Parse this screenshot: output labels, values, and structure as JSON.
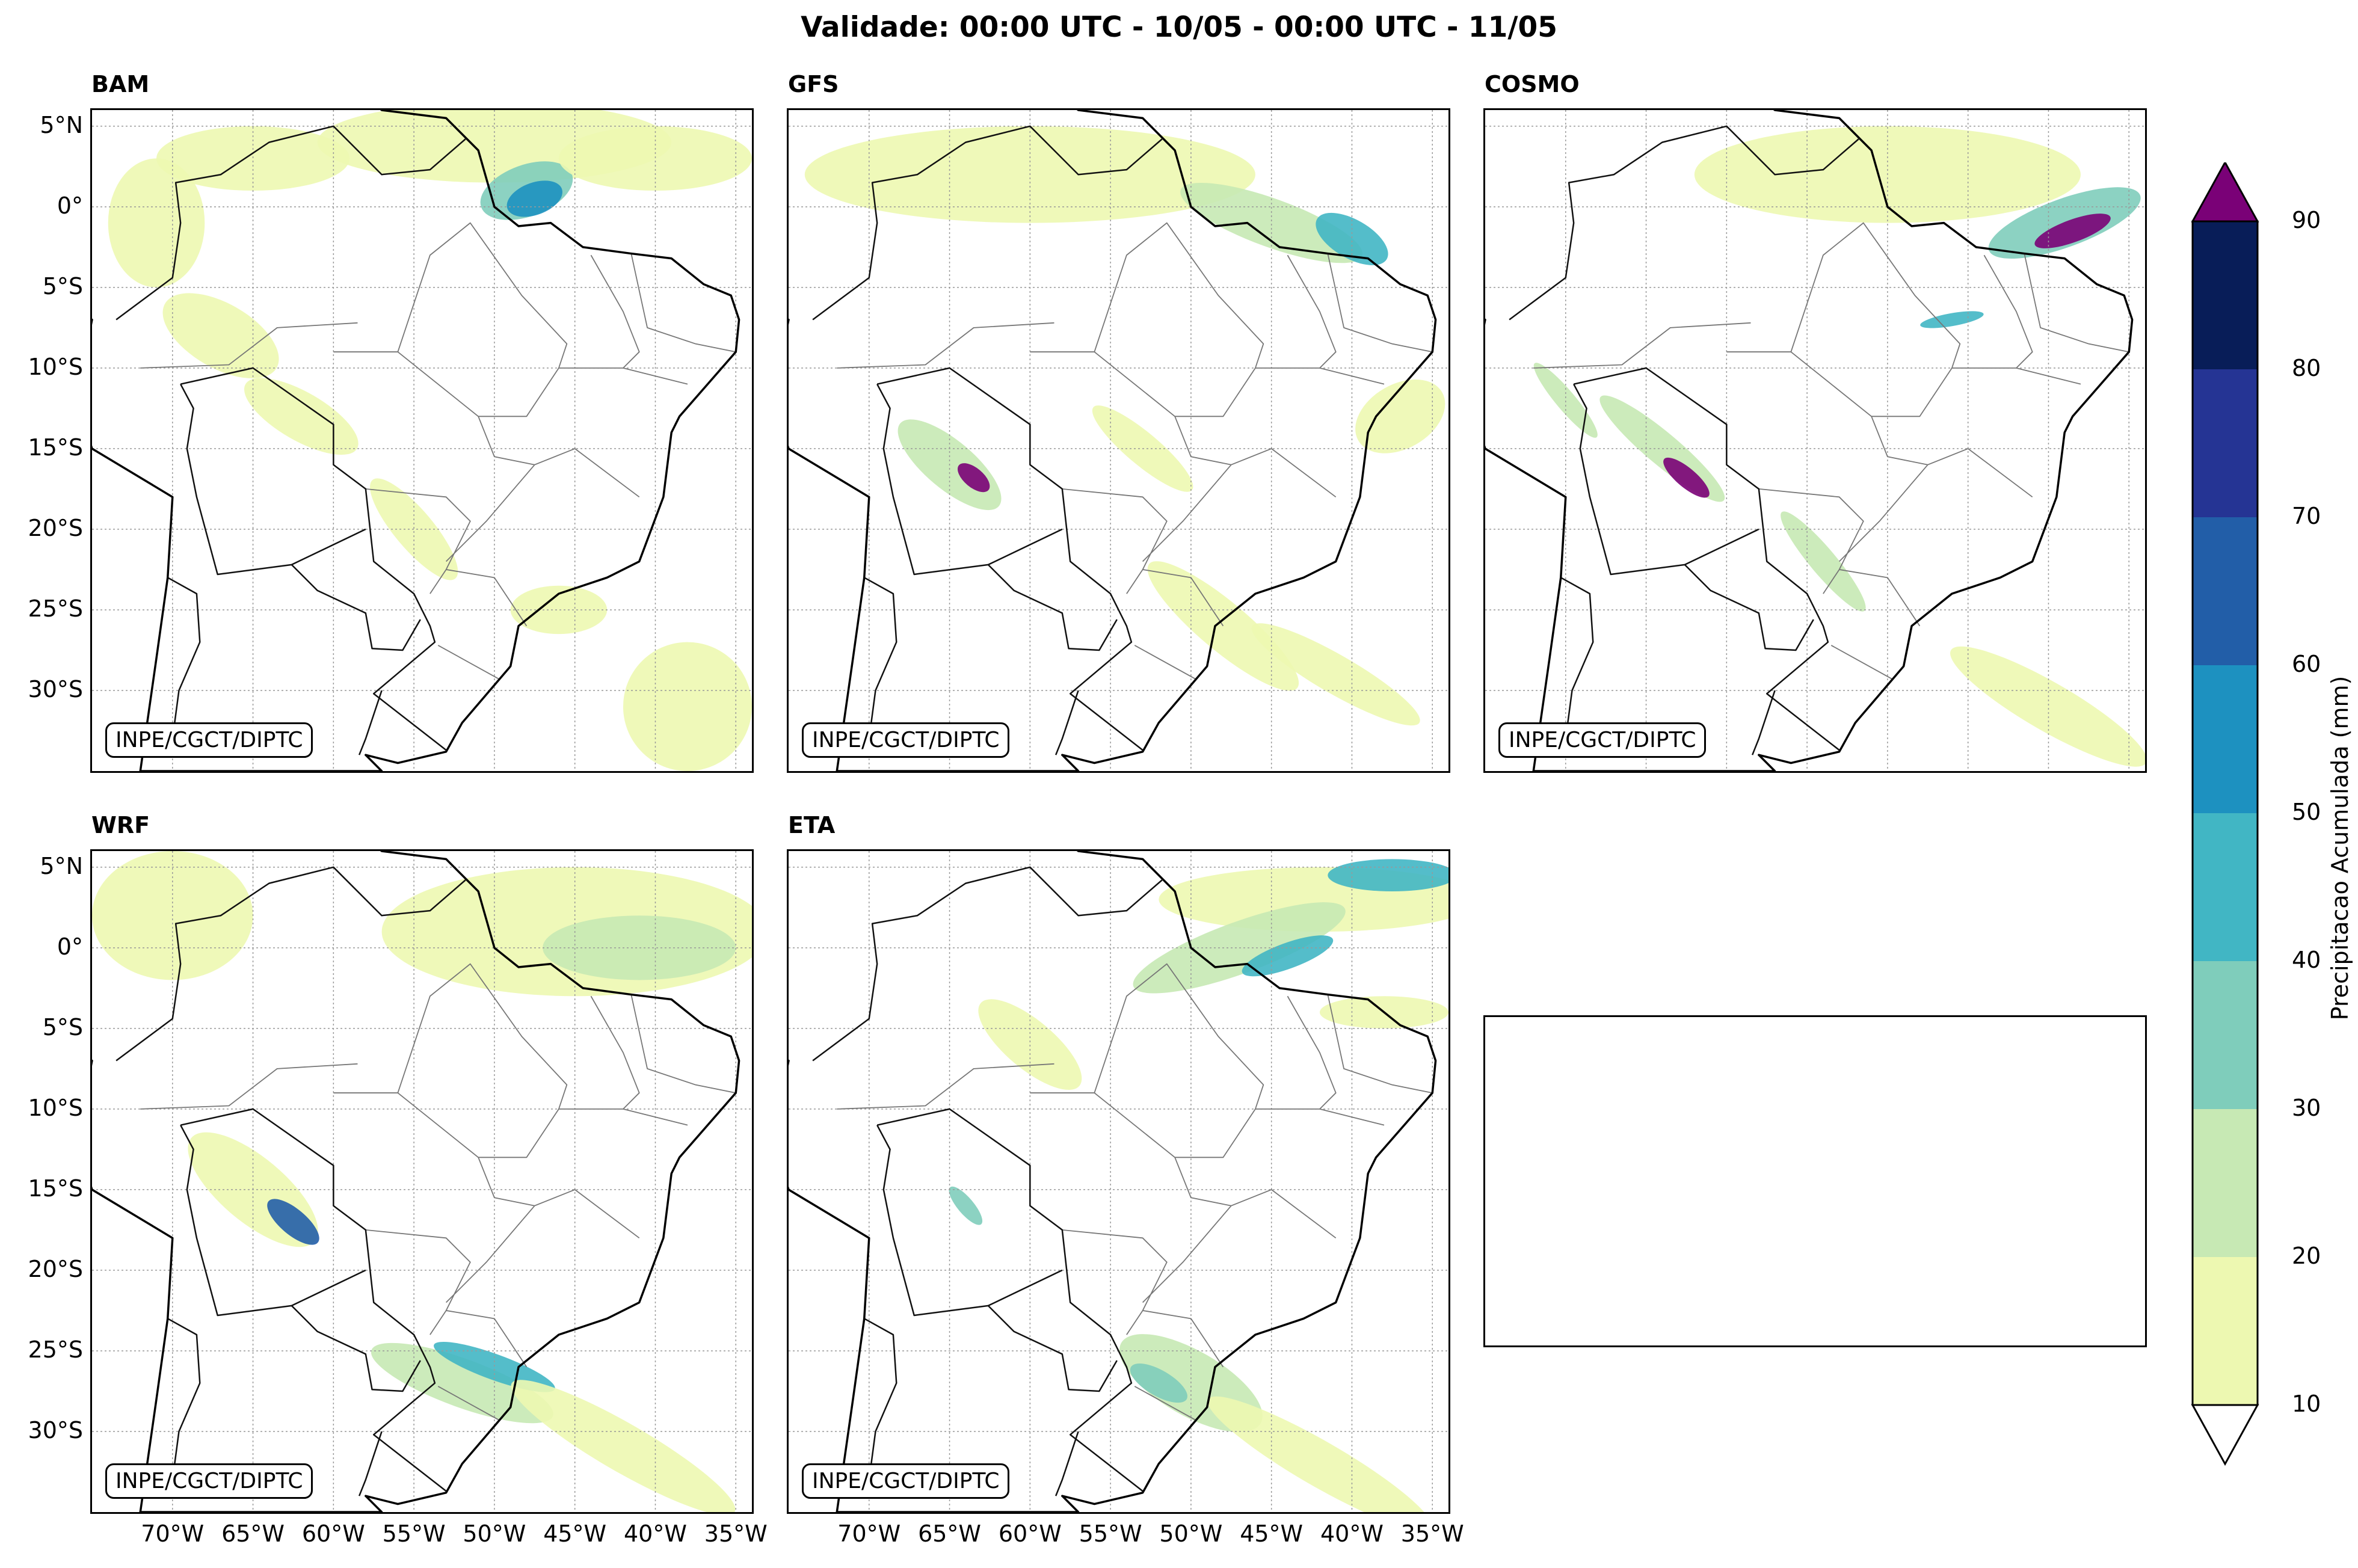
{
  "title": "Validade: 00:00 UTC - 10/05 - 00:00 UTC - 11/05",
  "credit": "INPE/CGCT/DIPTC",
  "panels": [
    {
      "name": "BAM"
    },
    {
      "name": "GFS"
    },
    {
      "name": "COSMO"
    },
    {
      "name": "WRF"
    },
    {
      "name": "ETA"
    }
  ],
  "lat_ticks": [
    "5°N",
    "0°",
    "5°S",
    "10°S",
    "15°S",
    "20°S",
    "25°S",
    "30°S"
  ],
  "lon_ticks": [
    "70°W",
    "65°W",
    "60°W",
    "55°W",
    "50°W",
    "45°W",
    "40°W",
    "35°W"
  ],
  "colorbar": {
    "label": "Precipitacao Acumulada (mm)",
    "ticks": [
      "10",
      "20",
      "30",
      "40",
      "50",
      "60",
      "70",
      "80",
      "90"
    ],
    "colors": [
      "#edf8b1",
      "#c7e9b4",
      "#7fcdbb",
      "#41b6c4",
      "#1d91c0",
      "#225ea8",
      "#253494",
      "#081d58"
    ],
    "over_color": "#7a0177",
    "under_color": "#ffffff"
  }
}
